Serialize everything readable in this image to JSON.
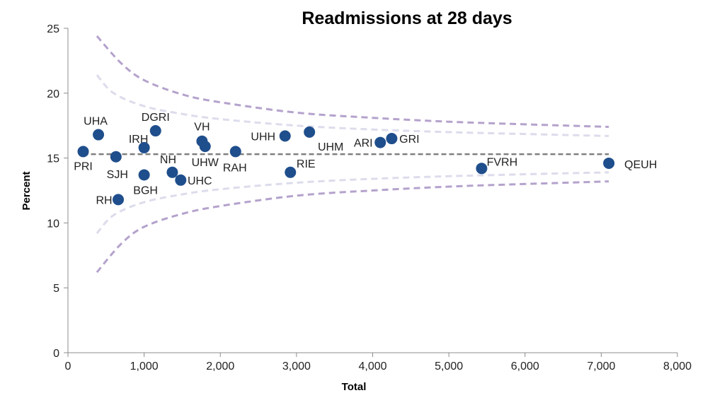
{
  "chart_data": {
    "type": "scatter",
    "title": "Readmissions at 28 days",
    "xlabel": "Total",
    "ylabel": "Percent",
    "xlim": [
      0,
      8000
    ],
    "ylim": [
      0,
      25
    ],
    "x_ticks": [
      "0",
      "1,000",
      "2,000",
      "3,000",
      "4,000",
      "5,000",
      "6,000",
      "7,000",
      "8,000"
    ],
    "y_ticks": [
      "0",
      "5",
      "10",
      "15",
      "20",
      "25"
    ],
    "grid": false,
    "legend": "none",
    "colors": {
      "point": "#1f4e8c",
      "mean_line": "#7f7f7f",
      "inner_limit": "#dcdcec",
      "outer_limit": "#b4a2cc"
    },
    "points": [
      {
        "label": "PRI",
        "x": 200,
        "y": 15.5
      },
      {
        "label": "UHA",
        "x": 400,
        "y": 16.8
      },
      {
        "label": "SJH",
        "x": 630,
        "y": 15.1
      },
      {
        "label": "RH",
        "x": 660,
        "y": 11.8
      },
      {
        "label": "IRH",
        "x": 1000,
        "y": 15.8
      },
      {
        "label": "BGH",
        "x": 1000,
        "y": 13.7
      },
      {
        "label": "DGRI",
        "x": 1150,
        "y": 17.1
      },
      {
        "label": "NH",
        "x": 1370,
        "y": 13.9
      },
      {
        "label": "UHC",
        "x": 1480,
        "y": 13.3
      },
      {
        "label": "VH",
        "x": 1760,
        "y": 16.3
      },
      {
        "label": "UHW",
        "x": 1800,
        "y": 15.9
      },
      {
        "label": "RAH",
        "x": 2200,
        "y": 15.5
      },
      {
        "label": "UHH",
        "x": 2850,
        "y": 16.7
      },
      {
        "label": "RIE",
        "x": 2920,
        "y": 13.9
      },
      {
        "label": "UHM",
        "x": 3170,
        "y": 17.0
      },
      {
        "label": "ARI",
        "x": 4100,
        "y": 16.2
      },
      {
        "label": "GRI",
        "x": 4250,
        "y": 16.5
      },
      {
        "label": "FVRH",
        "x": 5430,
        "y": 14.2
      },
      {
        "label": "QEUH",
        "x": 7100,
        "y": 14.6
      }
    ],
    "mean": 15.3,
    "mean_range": [
      200,
      7100
    ],
    "limits_range": [
      380,
      7100
    ],
    "inner_upper": [
      [
        380,
        21.4
      ],
      [
        600,
        20.0
      ],
      [
        1000,
        19.0
      ],
      [
        1500,
        18.4
      ],
      [
        2000,
        18.0
      ],
      [
        3000,
        17.5
      ],
      [
        4000,
        17.2
      ],
      [
        5000,
        17.0
      ],
      [
        6000,
        16.85
      ],
      [
        7100,
        16.7
      ]
    ],
    "inner_lower": [
      [
        380,
        9.2
      ],
      [
        600,
        10.6
      ],
      [
        1000,
        11.6
      ],
      [
        1500,
        12.2
      ],
      [
        2000,
        12.6
      ],
      [
        3000,
        13.1
      ],
      [
        4000,
        13.4
      ],
      [
        5000,
        13.6
      ],
      [
        6000,
        13.75
      ],
      [
        7100,
        13.9
      ]
    ],
    "outer_upper": [
      [
        380,
        24.4
      ],
      [
        700,
        22.3
      ],
      [
        1000,
        21.0
      ],
      [
        1500,
        19.9
      ],
      [
        2000,
        19.3
      ],
      [
        3000,
        18.5
      ],
      [
        4000,
        18.1
      ],
      [
        5000,
        17.8
      ],
      [
        6000,
        17.6
      ],
      [
        7100,
        17.4
      ]
    ],
    "outer_lower": [
      [
        380,
        6.2
      ],
      [
        700,
        8.4
      ],
      [
        1000,
        9.7
      ],
      [
        1500,
        10.7
      ],
      [
        2000,
        11.3
      ],
      [
        3000,
        12.1
      ],
      [
        4000,
        12.5
      ],
      [
        5000,
        12.8
      ],
      [
        6000,
        13.0
      ],
      [
        7100,
        13.2
      ]
    ]
  }
}
